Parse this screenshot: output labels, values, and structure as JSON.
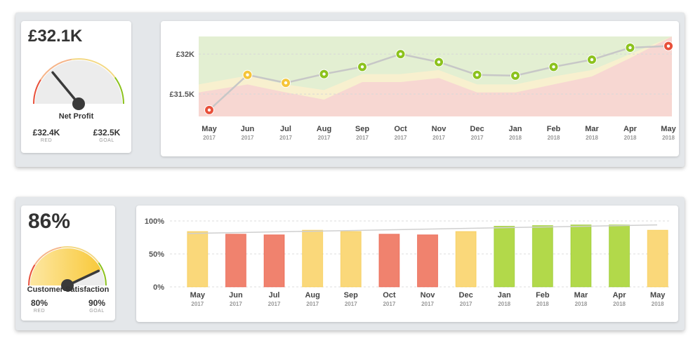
{
  "profit": {
    "value": "£32.1K",
    "gauge_label": "Net Profit",
    "red_value": "£32.4K",
    "red_label": "RED",
    "goal_value": "£32.5K",
    "goal_label": "GOAL",
    "gauge_level": 0.28,
    "y_ticks": [
      "£32K",
      "£31.5K"
    ]
  },
  "satisfaction": {
    "value": "86%",
    "gauge_label": "Customer Satisfaction",
    "red_value": "80%",
    "red_label": "RED",
    "goal_value": "90%",
    "goal_label": "GOAL",
    "gauge_level": 0.86,
    "y_ticks": [
      "100%",
      "50%",
      "0%"
    ]
  },
  "colors": {
    "red": "#f0826e",
    "yellow": "#fad87a",
    "green": "#b2d94a",
    "red_dot": "#e8503a",
    "yellow_dot": "#f5c53a",
    "green_dot": "#8cc21e",
    "line": "#c7c7c7"
  },
  "chart_data": [
    {
      "type": "line",
      "categories": [
        {
          "month": "May",
          "year": "2017"
        },
        {
          "month": "Jun",
          "year": "2017"
        },
        {
          "month": "Jul",
          "year": "2017"
        },
        {
          "month": "Aug",
          "year": "2017"
        },
        {
          "month": "Sep",
          "year": "2017"
        },
        {
          "month": "Oct",
          "year": "2017"
        },
        {
          "month": "Nov",
          "year": "2017"
        },
        {
          "month": "Dec",
          "year": "2017"
        },
        {
          "month": "Jan",
          "year": "2018"
        },
        {
          "month": "Feb",
          "year": "2018"
        },
        {
          "month": "Mar",
          "year": "2018"
        },
        {
          "month": "Apr",
          "year": "2018"
        },
        {
          "month": "May",
          "year": "2018"
        }
      ],
      "values": [
        31.3,
        31.74,
        31.64,
        31.75,
        31.84,
        32.0,
        31.9,
        31.74,
        31.73,
        31.84,
        31.93,
        32.08,
        32.1
      ],
      "status": [
        "red",
        "yellow",
        "yellow",
        "green",
        "green",
        "green",
        "green",
        "green",
        "green",
        "green",
        "green",
        "green",
        "red"
      ],
      "goal_band_top": [
        31.62,
        31.73,
        31.62,
        31.55,
        31.75,
        31.75,
        31.8,
        31.62,
        31.62,
        31.72,
        31.8,
        32.0,
        32.22
      ],
      "red_band_top": [
        31.52,
        31.62,
        31.52,
        31.43,
        31.65,
        31.65,
        31.7,
        31.52,
        31.52,
        31.62,
        31.72,
        31.95,
        32.22
      ],
      "ylim": [
        31.22,
        32.22
      ],
      "title": "",
      "xlabel": "",
      "ylabel": "",
      "grid": false
    },
    {
      "type": "bar",
      "categories": [
        {
          "month": "May",
          "year": "2017"
        },
        {
          "month": "Jun",
          "year": "2017"
        },
        {
          "month": "Jul",
          "year": "2017"
        },
        {
          "month": "Aug",
          "year": "2017"
        },
        {
          "month": "Sep",
          "year": "2017"
        },
        {
          "month": "Oct",
          "year": "2017"
        },
        {
          "month": "Nov",
          "year": "2017"
        },
        {
          "month": "Dec",
          "year": "2017"
        },
        {
          "month": "Jan",
          "year": "2018"
        },
        {
          "month": "Feb",
          "year": "2018"
        },
        {
          "month": "Mar",
          "year": "2018"
        },
        {
          "month": "Apr",
          "year": "2018"
        },
        {
          "month": "May",
          "year": "2018"
        }
      ],
      "values": [
        84,
        80,
        79,
        86,
        84,
        80,
        79,
        84,
        92,
        93,
        94,
        94,
        86
      ],
      "status": [
        "yellow",
        "red",
        "red",
        "yellow",
        "yellow",
        "red",
        "red",
        "yellow",
        "green",
        "green",
        "green",
        "green",
        "yellow"
      ],
      "trend": [
        81,
        94
      ],
      "ylim": [
        0,
        100
      ],
      "title": "",
      "xlabel": "",
      "ylabel": "",
      "grid": true
    }
  ]
}
